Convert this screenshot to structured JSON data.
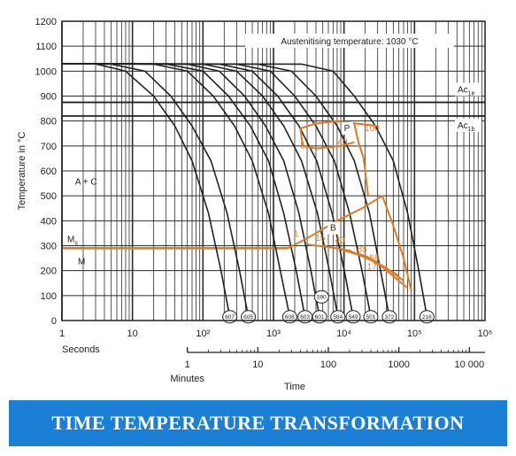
{
  "banner": {
    "title": "TIME TEMPERATURE TRANSFORMATION"
  },
  "chart_data": {
    "type": "line",
    "title": "",
    "annotation_top": "Austenitising temperature: 1030 °C",
    "ylabel": "Temperature in °C",
    "xlabel": "Time",
    "x_scale": "log",
    "xlim_seconds": [
      1,
      1000000
    ],
    "ylim": [
      0,
      1200
    ],
    "y_ticks": [
      "0",
      "100",
      "200",
      "300",
      "400",
      "500",
      "600",
      "700",
      "800",
      "900",
      "1000",
      "1100",
      "1200"
    ],
    "seconds_axis": {
      "label": "Seconds",
      "ticks": [
        {
          "value": 1,
          "label": "1"
        },
        {
          "value": 10,
          "label": "10"
        },
        {
          "value": 100,
          "label": "10²"
        },
        {
          "value": 1000,
          "label": "10³"
        },
        {
          "value": 10000,
          "label": "10⁴"
        },
        {
          "value": 100000,
          "label": "10⁵"
        },
        {
          "value": 1000000,
          "label": "10⁶"
        }
      ]
    },
    "minutes_axis": {
      "label": "Minutes",
      "ticks": [
        {
          "value": 60,
          "label": "1"
        },
        {
          "value": 600,
          "label": "10"
        },
        {
          "value": 6000,
          "label": "100"
        },
        {
          "value": 60000,
          "label": "1000"
        },
        {
          "value": 600000,
          "label": "10 000"
        }
      ]
    },
    "horizontal_lines": [
      {
        "label": "Ac1e",
        "main": "Ac",
        "sub": "1e",
        "y": 875
      },
      {
        "label": "Ac1b",
        "main": "Ac",
        "sub": "1b",
        "y": 820
      }
    ],
    "ms_line": {
      "label": "Ms",
      "main": "M",
      "sub": "s",
      "y": 290
    },
    "region_labels": [
      {
        "text": "A + C",
        "x": 2.2,
        "y": 545
      },
      {
        "text": "M",
        "x": 1.9,
        "y": 225
      },
      {
        "text": "P",
        "x": 11000,
        "y": 760
      },
      {
        "text": "B",
        "x": 7000,
        "y": 360
      }
    ],
    "transformation_percentages": [
      {
        "text": "5",
        "x": 2600,
        "y": 690
      },
      {
        "text": "40",
        "x": 9500,
        "y": 705
      },
      {
        "text": "100",
        "x": 25000,
        "y": 760
      },
      {
        "text": "1",
        "x": 2100,
        "y": 335
      },
      {
        "text": "15",
        "x": 4600,
        "y": 320
      },
      {
        "text": "40",
        "x": 8800,
        "y": 310
      },
      {
        "text": "85",
        "x": 18000,
        "y": 275
      },
      {
        "text": "58",
        "x": 27000,
        "y": 240
      },
      {
        "text": "17",
        "x": 25000,
        "y": 205
      }
    ],
    "hardness_values": [
      {
        "text": "607",
        "x": 240
      },
      {
        "text": "605",
        "x": 440
      },
      {
        "text": "608",
        "x": 1700
      },
      {
        "text": "603",
        "x": 2800
      },
      {
        "text": "601",
        "x": 4500
      },
      {
        "text": "590",
        "x": 4800,
        "y": 95
      },
      {
        "text": "584",
        "x": 8200
      },
      {
        "text": "549",
        "x": 13500
      },
      {
        "text": "501",
        "x": 24000
      },
      {
        "text": "372",
        "x": 44000
      },
      {
        "text": "216",
        "x": 150000
      }
    ],
    "cooling_curves": [
      {
        "end": "607",
        "points": [
          [
            1,
            1030
          ],
          [
            3,
            1029
          ],
          [
            8,
            1000
          ],
          [
            20,
            900
          ],
          [
            40,
            780
          ],
          [
            70,
            640
          ],
          [
            120,
            430
          ],
          [
            180,
            200
          ],
          [
            240,
            15
          ]
        ]
      },
      {
        "end": "605",
        "points": [
          [
            1,
            1030
          ],
          [
            5,
            1028
          ],
          [
            15,
            1000
          ],
          [
            35,
            900
          ],
          [
            70,
            780
          ],
          [
            130,
            640
          ],
          [
            220,
            430
          ],
          [
            330,
            200
          ],
          [
            440,
            15
          ]
        ]
      },
      {
        "end": "608",
        "points": [
          [
            1,
            1030
          ],
          [
            20,
            1028
          ],
          [
            60,
            1000
          ],
          [
            140,
            900
          ],
          [
            280,
            780
          ],
          [
            500,
            640
          ],
          [
            850,
            430
          ],
          [
            1250,
            200
          ],
          [
            1700,
            15
          ]
        ]
      },
      {
        "end": "603",
        "points": [
          [
            1,
            1030
          ],
          [
            30,
            1028
          ],
          [
            100,
            1000
          ],
          [
            230,
            900
          ],
          [
            470,
            780
          ],
          [
            850,
            640
          ],
          [
            1400,
            430
          ],
          [
            2100,
            200
          ],
          [
            2800,
            15
          ]
        ]
      },
      {
        "end": "601",
        "points": [
          [
            1,
            1030
          ],
          [
            60,
            1028
          ],
          [
            170,
            1000
          ],
          [
            390,
            900
          ],
          [
            770,
            780
          ],
          [
            1400,
            640
          ],
          [
            2300,
            430
          ],
          [
            3400,
            200
          ],
          [
            4500,
            15
          ]
        ]
      },
      {
        "end": "584",
        "points": [
          [
            1,
            1030
          ],
          [
            100,
            1028
          ],
          [
            300,
            1000
          ],
          [
            700,
            900
          ],
          [
            1400,
            780
          ],
          [
            2500,
            640
          ],
          [
            4200,
            430
          ],
          [
            6200,
            200
          ],
          [
            8200,
            15
          ]
        ]
      },
      {
        "end": "549",
        "points": [
          [
            1,
            1030
          ],
          [
            170,
            1028
          ],
          [
            500,
            1000
          ],
          [
            1150,
            900
          ],
          [
            2300,
            780
          ],
          [
            4100,
            640
          ],
          [
            6800,
            430
          ],
          [
            10100,
            200
          ],
          [
            13500,
            15
          ]
        ]
      },
      {
        "end": "501",
        "points": [
          [
            1,
            1030
          ],
          [
            300,
            1028
          ],
          [
            900,
            1000
          ],
          [
            2000,
            900
          ],
          [
            4000,
            780
          ],
          [
            7300,
            640
          ],
          [
            12000,
            430
          ],
          [
            18000,
            200
          ],
          [
            24000,
            15
          ]
        ]
      },
      {
        "end": "372",
        "points": [
          [
            1,
            1030
          ],
          [
            600,
            1028
          ],
          [
            1800,
            1000
          ],
          [
            4000,
            900
          ],
          [
            8000,
            780
          ],
          [
            14000,
            640
          ],
          [
            23000,
            430
          ],
          [
            33000,
            200
          ],
          [
            44000,
            15
          ]
        ]
      },
      {
        "end": "216",
        "points": [
          [
            1,
            1030
          ],
          [
            2500,
            1028
          ],
          [
            7000,
            1000
          ],
          [
            14000,
            900
          ],
          [
            28000,
            780
          ],
          [
            50000,
            640
          ],
          [
            80000,
            430
          ],
          [
            115000,
            200
          ],
          [
            150000,
            15
          ]
        ]
      }
    ],
    "transformation_curves": [
      {
        "name": "Pearlite start",
        "points": [
          [
            2400,
            770
          ],
          [
            4000,
            790
          ],
          [
            8000,
            800
          ],
          [
            15000,
            790
          ],
          [
            30000,
            780
          ]
        ]
      },
      {
        "name": "Pearlite lower",
        "points": [
          [
            2400,
            770
          ],
          [
            2600,
            700
          ],
          [
            4000,
            690
          ],
          [
            9000,
            700
          ],
          [
            14000,
            715
          ]
        ]
      },
      {
        "name": "Pearlite 100",
        "points": [
          [
            14000,
            790
          ],
          [
            16000,
            715
          ],
          [
            19000,
            650
          ],
          [
            22000,
            500
          ]
        ]
      },
      {
        "name": "Bainite start",
        "points": [
          [
            1600,
            290
          ],
          [
            3000,
            330
          ],
          [
            8000,
            400
          ],
          [
            18000,
            450
          ],
          [
            35000,
            500
          ]
        ]
      },
      {
        "name": "Bainite 100",
        "points": [
          [
            35000,
            500
          ],
          [
            50000,
            380
          ],
          [
            70000,
            250
          ],
          [
            90000,
            120
          ]
        ]
      },
      {
        "name": "Bainite lower 1",
        "points": [
          [
            3000,
            305
          ],
          [
            8000,
            290
          ],
          [
            20000,
            255
          ],
          [
            60000,
            180
          ]
        ]
      },
      {
        "name": "Bainite lower 2",
        "points": [
          [
            5000,
            300
          ],
          [
            12000,
            280
          ],
          [
            30000,
            230
          ],
          [
            80000,
            130
          ]
        ]
      },
      {
        "name": "Bainite lower 3",
        "points": [
          [
            9000,
            285
          ],
          [
            20000,
            260
          ],
          [
            40000,
            210
          ],
          [
            70000,
            160
          ]
        ]
      }
    ]
  }
}
